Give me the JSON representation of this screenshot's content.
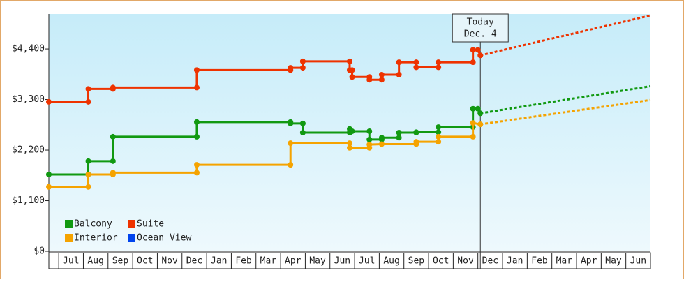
{
  "chart_data": {
    "type": "line",
    "step": true,
    "xlim": [
      -0.4,
      24
    ],
    "ylim": [
      0,
      5160
    ],
    "xticks": [
      {
        "value": 0.5,
        "label": "Jul"
      },
      {
        "value": 1.5,
        "label": "Aug"
      },
      {
        "value": 2.5,
        "label": "Sep"
      },
      {
        "value": 3.5,
        "label": "Oct"
      },
      {
        "value": 4.5,
        "label": "Nov"
      },
      {
        "value": 5.5,
        "label": "Dec"
      },
      {
        "value": 6.5,
        "label": "Jan"
      },
      {
        "value": 7.5,
        "label": "Feb"
      },
      {
        "value": 8.5,
        "label": "Mar"
      },
      {
        "value": 9.5,
        "label": "Apr"
      },
      {
        "value": 10.5,
        "label": "May"
      },
      {
        "value": 11.5,
        "label": "Jun"
      },
      {
        "value": 12.5,
        "label": "Jul"
      },
      {
        "value": 13.5,
        "label": "Aug"
      },
      {
        "value": 14.5,
        "label": "Sep"
      },
      {
        "value": 15.5,
        "label": "Oct"
      },
      {
        "value": 16.5,
        "label": "Nov"
      },
      {
        "value": 17.5,
        "label": "Dec"
      },
      {
        "value": 18.5,
        "label": "Jan"
      },
      {
        "value": 19.5,
        "label": "Feb"
      },
      {
        "value": 20.5,
        "label": "Mar"
      },
      {
        "value": 21.5,
        "label": "Apr"
      },
      {
        "value": 22.5,
        "label": "May"
      },
      {
        "value": 23.5,
        "label": "Jun"
      }
    ],
    "yticks": [
      {
        "value": 0,
        "label": "$0"
      },
      {
        "value": 1100,
        "label": "$1,100"
      },
      {
        "value": 2200,
        "label": "$2,200"
      },
      {
        "value": 3300,
        "label": "$3,300"
      },
      {
        "value": 4400,
        "label": "$4,400"
      }
    ],
    "annotation": {
      "x": 17.1,
      "lines": [
        "Today",
        "Dec. 4"
      ]
    },
    "legend": "lower-left",
    "series": [
      {
        "name": "Balcony",
        "color": "#119911",
        "x": [
          -0.4,
          1.2,
          1.2,
          2.2,
          2.2,
          5.6,
          5.6,
          9.4,
          9.4,
          9.9,
          9.9,
          11.8,
          11.8,
          11.9,
          12.6,
          12.6,
          13.1,
          13.1,
          13.8,
          13.8,
          14.5,
          14.5,
          15.4,
          15.4,
          16.8,
          16.8,
          17.0,
          17.1
        ],
        "values": [
          1670,
          1670,
          1960,
          1960,
          2490,
          2490,
          2810,
          2810,
          2780,
          2780,
          2580,
          2580,
          2660,
          2610,
          2610,
          2430,
          2430,
          2470,
          2470,
          2580,
          2580,
          2590,
          2590,
          2700,
          2700,
          3100,
          3100,
          3000
        ],
        "projection": {
          "x": [
            17.1,
            24
          ],
          "values": [
            3000,
            3590
          ]
        }
      },
      {
        "name": "Suite",
        "color": "#ee3300",
        "x": [
          -0.4,
          1.2,
          1.2,
          2.2,
          2.2,
          5.6,
          5.6,
          9.4,
          9.4,
          9.9,
          9.9,
          11.8,
          11.8,
          11.9,
          11.9,
          12.6,
          12.6,
          13.1,
          13.1,
          13.8,
          13.8,
          14.5,
          14.5,
          15.4,
          15.4,
          16.8,
          16.8,
          17.0,
          17.1
        ],
        "values": [
          3250,
          3250,
          3530,
          3530,
          3560,
          3560,
          3940,
          3940,
          3990,
          3990,
          4130,
          4130,
          3940,
          3940,
          3790,
          3790,
          3730,
          3730,
          3840,
          3840,
          4110,
          4110,
          4000,
          4000,
          4110,
          4110,
          4380,
          4380,
          4260
        ],
        "projection": {
          "x": [
            17.1,
            24
          ],
          "values": [
            4260,
            5130
          ]
        }
      },
      {
        "name": "Interior",
        "color": "#f5a300",
        "x": [
          -0.4,
          1.2,
          1.2,
          2.2,
          2.2,
          5.6,
          5.6,
          9.4,
          9.4,
          11.8,
          11.8,
          12.6,
          12.6,
          13.1,
          14.5,
          14.5,
          15.4,
          15.4,
          16.8,
          16.8,
          17.1
        ],
        "values": [
          1400,
          1400,
          1670,
          1670,
          1710,
          1710,
          1880,
          1880,
          2350,
          2350,
          2250,
          2250,
          2320,
          2330,
          2330,
          2380,
          2380,
          2490,
          2490,
          2790,
          2760
        ],
        "projection": {
          "x": [
            17.1,
            24
          ],
          "values": [
            2760,
            3290
          ]
        }
      },
      {
        "name": "Ocean View",
        "color": "#0044ee",
        "x": [],
        "values": []
      }
    ]
  }
}
